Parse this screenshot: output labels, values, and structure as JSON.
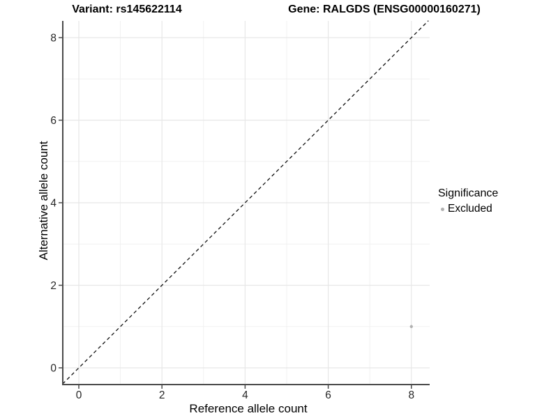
{
  "chart_data": {
    "type": "scatter",
    "titles": {
      "left": "Variant: rs145622114",
      "right": "Gene: RALGDS (ENSG00000160271)"
    },
    "xlabel": "Reference allele count",
    "ylabel": "Alternative allele count",
    "x_ticks": [
      0,
      2,
      4,
      6,
      8
    ],
    "y_ticks": [
      0,
      2,
      4,
      6,
      8
    ],
    "x_minor": [
      1,
      3,
      5,
      7
    ],
    "y_minor": [
      1,
      3,
      5,
      7
    ],
    "xlim": [
      -0.39,
      8.44
    ],
    "ylim": [
      -0.41,
      8.41
    ],
    "grid": true,
    "points": [
      {
        "x": 8,
        "y": 1,
        "series": "Excluded"
      }
    ],
    "reference_line": {
      "style": "dashed",
      "slope": 1,
      "intercept": 0
    },
    "legend": {
      "title": "Significance",
      "position": "right",
      "items": [
        {
          "label": "Excluded",
          "color": "#b0b0b0"
        }
      ]
    },
    "colors": {
      "point": "#b0b0b0",
      "grid_major": "#e7e7e7",
      "grid_minor": "#f1f1f1",
      "axis_line": "#4a4a4a",
      "tick_text": "#262626",
      "dashed_line": "#111111"
    }
  }
}
